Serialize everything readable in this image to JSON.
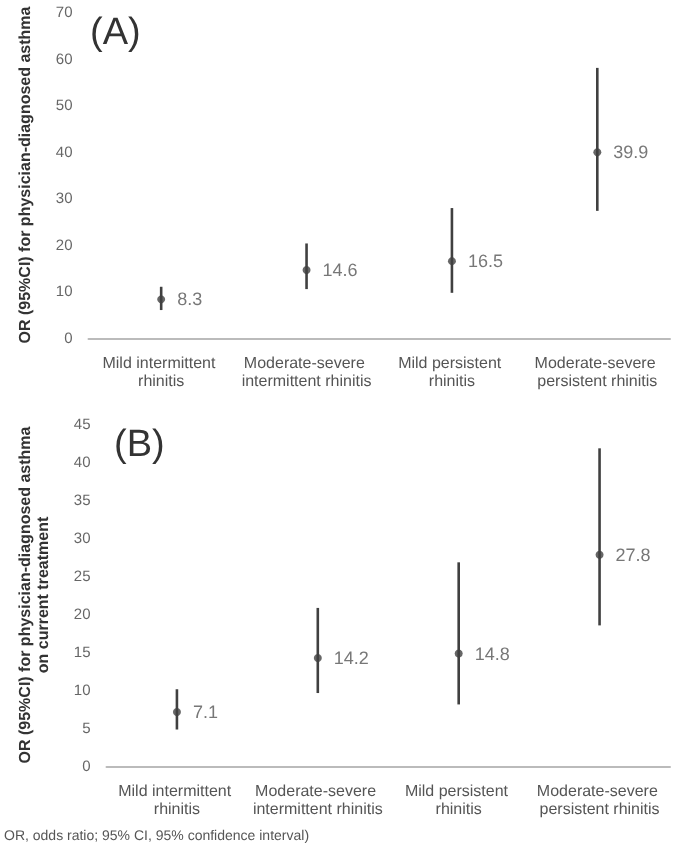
{
  "chart_data": [
    {
      "type": "scatter",
      "title": "(A)",
      "ylabel": "OR (95%CI) for physician-diagnosed asthma",
      "categories": [
        "Mild intermittent rhinitis",
        "Moderate-severe intermittent rhinitis",
        "Mild persistent rhinitis",
        "Moderate-severe persistent rhinitis"
      ],
      "series": [
        {
          "color": "#404040",
          "values": [
            8.3,
            14.6,
            16.5,
            39.9
          ],
          "errors": [
            [
              6,
              11
            ],
            [
              10.5,
              20.3
            ],
            [
              9.7,
              27.9
            ],
            [
              27.3,
              58
            ]
          ]
        }
      ],
      "ylim": [
        0,
        70
      ],
      "yticks": [
        0,
        10,
        20,
        30,
        40,
        50,
        60,
        70
      ],
      "data_labels": true,
      "marker": "circle",
      "grid": false
    },
    {
      "type": "scatter",
      "title": "(B)",
      "ylabel": "OR (95%CI) for physician-diagnosed asthma\non current treatment",
      "categories": [
        "Mild intermittent rhinitis",
        "Moderate-severe intermittent rhinitis",
        "Mild persistent rhinitis",
        "Moderate-severe persistent rhinitis"
      ],
      "series": [
        {
          "color": "#404040",
          "values": [
            7.1,
            14.2,
            14.8,
            27.8
          ],
          "errors": [
            [
              4.8,
              10.1
            ],
            [
              9.6,
              20.8
            ],
            [
              8.1,
              26.8
            ],
            [
              18.5,
              41.8
            ]
          ]
        }
      ],
      "ylim": [
        0,
        45
      ],
      "yticks": [
        0,
        5,
        10,
        15,
        20,
        25,
        30,
        35,
        40,
        45
      ],
      "data_labels": true,
      "marker": "circle",
      "grid": false,
      "annotations": [
        "OR, odds ratio; 95% CI, 95% confidence interval)"
      ]
    }
  ]
}
